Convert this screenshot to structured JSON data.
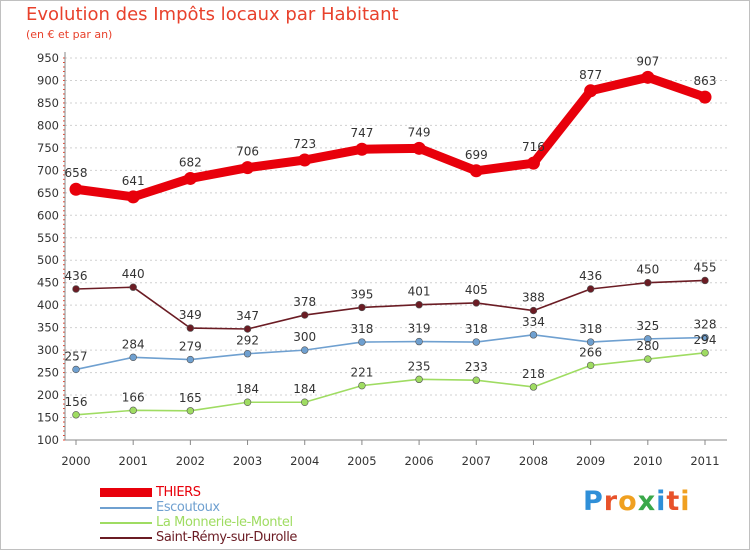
{
  "chart_data": {
    "type": "line",
    "title": "Evolution des Impôts locaux par Habitant",
    "subtitle": "(en € et par an)",
    "xlabel": "",
    "ylabel": "",
    "x": [
      "2000",
      "2001",
      "2002",
      "2003",
      "2004",
      "2005",
      "2006",
      "2007",
      "2008",
      "2009",
      "2010",
      "2011"
    ],
    "ylim": [
      100,
      950
    ],
    "yticks": [
      100,
      150,
      200,
      250,
      300,
      350,
      400,
      450,
      500,
      550,
      600,
      650,
      700,
      750,
      800,
      850,
      900,
      950
    ],
    "grid": "horizontal dashed",
    "legend_position": "bottom-left",
    "series": [
      {
        "name": "THIERS",
        "color": "#e8000b",
        "thick": true,
        "values": [
          658,
          641,
          682,
          706,
          723,
          747,
          749,
          699,
          716,
          877,
          907,
          863
        ]
      },
      {
        "name": "Escoutoux",
        "color": "#6fa0d0",
        "thick": false,
        "values": [
          257,
          284,
          279,
          292,
          300,
          318,
          319,
          318,
          334,
          318,
          325,
          328
        ]
      },
      {
        "name": "La Monnerie-le-Montel",
        "color": "#9fdc62",
        "thick": false,
        "values": [
          156,
          166,
          165,
          184,
          184,
          221,
          235,
          233,
          218,
          266,
          280,
          294
        ]
      },
      {
        "name": "Saint-Rémy-sur-Durolle",
        "color": "#6b1c24",
        "thick": false,
        "values": [
          436,
          440,
          349,
          347,
          378,
          395,
          401,
          405,
          388,
          436,
          450,
          455
        ]
      }
    ]
  },
  "logo": {
    "text": "Proxiti",
    "colors": [
      "#2f8fd8",
      "#e8522a",
      "#f0a020",
      "#3aa84a",
      "#2f8fd8",
      "#e8522a",
      "#f0a020"
    ]
  }
}
